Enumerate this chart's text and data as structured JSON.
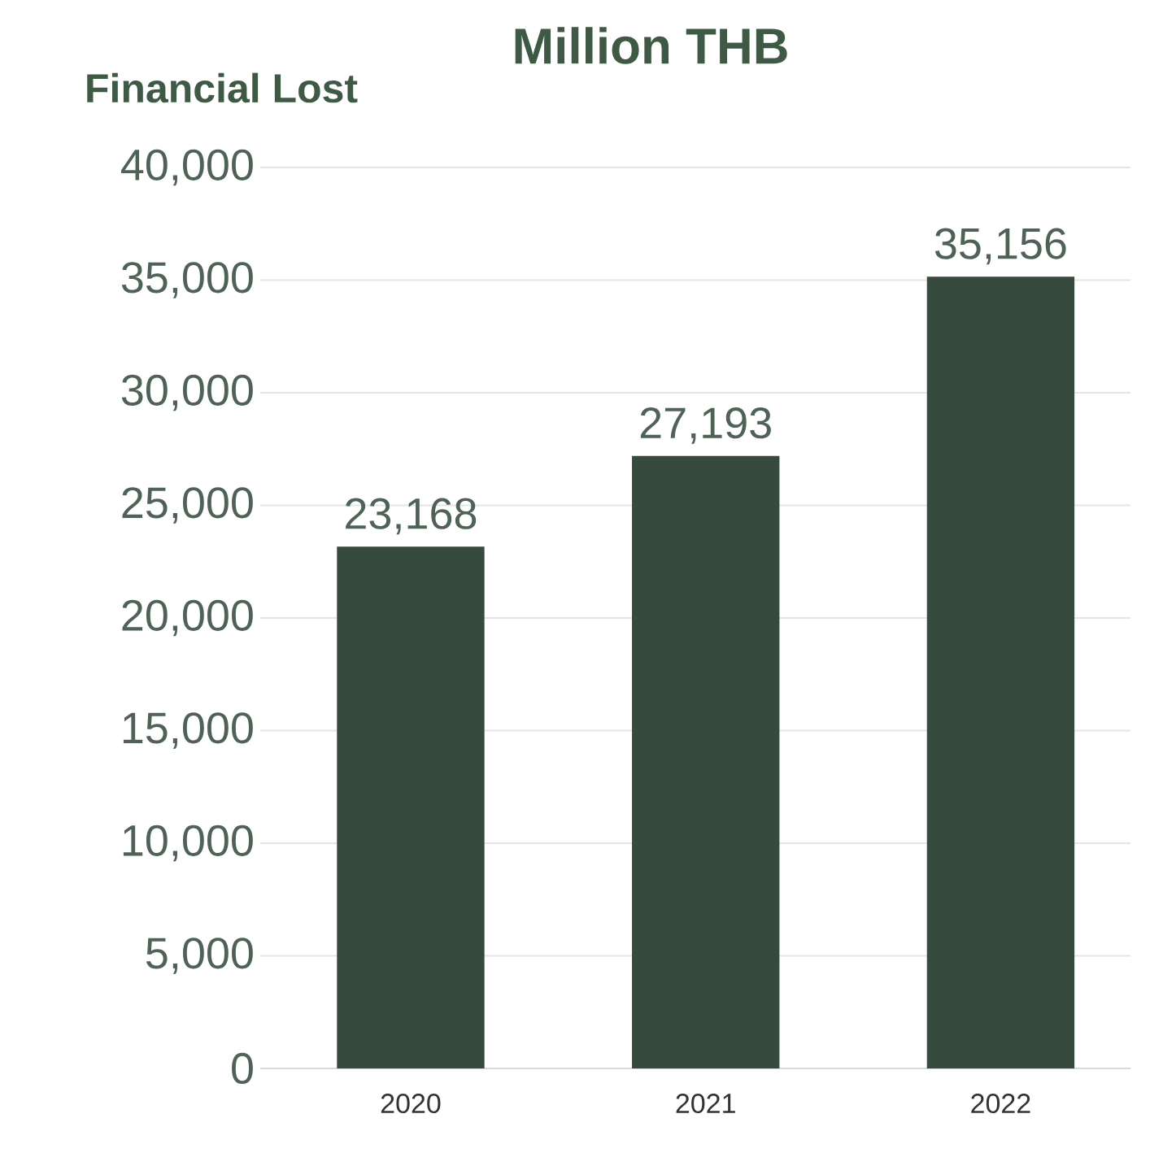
{
  "chart_data": {
    "type": "bar",
    "title": "Million THB",
    "ylabel": "Financial Lost",
    "categories": [
      "2020",
      "2021",
      "2022"
    ],
    "values": [
      23168,
      27193,
      35156
    ],
    "value_labels": [
      "23,168",
      "27,193",
      "35,156"
    ],
    "color": "#374a3e",
    "ylim": [
      0,
      40000
    ],
    "yticks": [
      {
        "value": 0,
        "label": "0"
      },
      {
        "value": 5000,
        "label": "5,000"
      },
      {
        "value": 10000,
        "label": "10,000"
      },
      {
        "value": 15000,
        "label": "15,000"
      },
      {
        "value": 20000,
        "label": "20,000"
      },
      {
        "value": 25000,
        "label": "25,000"
      },
      {
        "value": 30000,
        "label": "30,000"
      },
      {
        "value": 35000,
        "label": "35,000"
      },
      {
        "value": 40000,
        "label": "40,000"
      }
    ],
    "grid": "y"
  }
}
